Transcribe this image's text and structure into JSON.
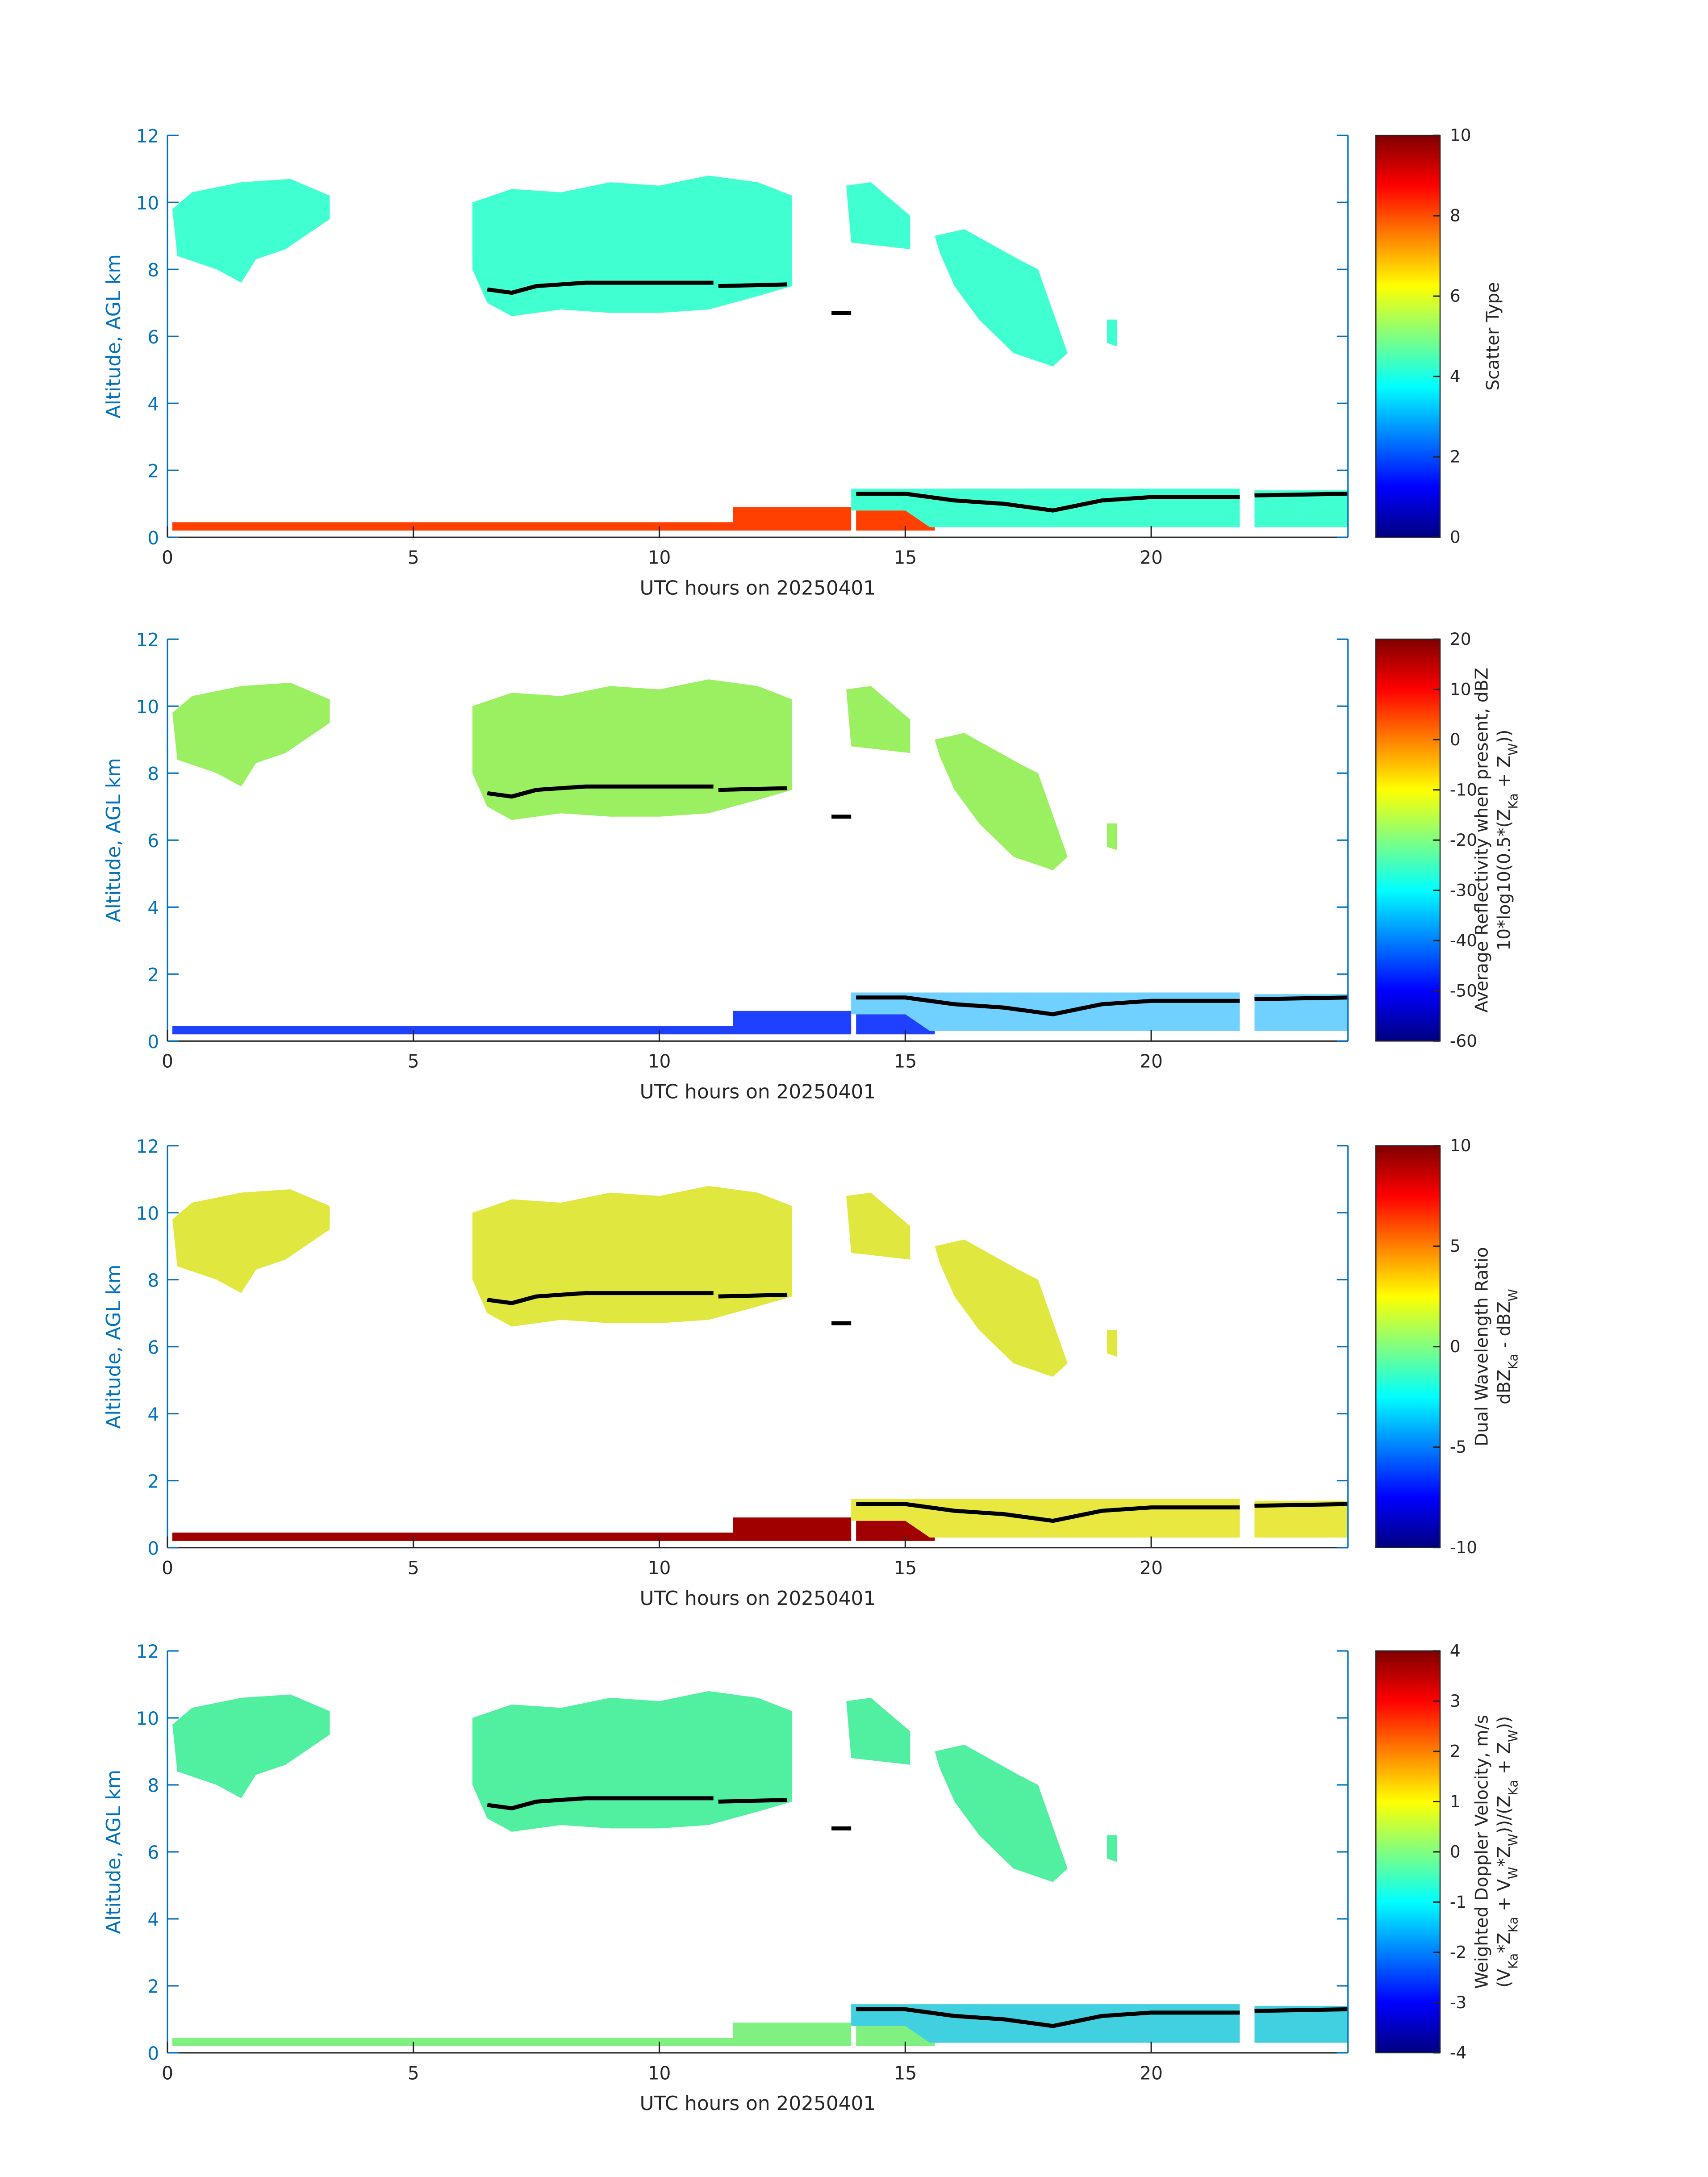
{
  "chart_data": [
    {
      "type": "heatmap",
      "xlabel": "UTC hours on 20250401",
      "ylabel": "Altitude, AGL km",
      "xlim": [
        0,
        24
      ],
      "xticks": [
        0,
        5,
        10,
        15,
        20
      ],
      "ylim": [
        0,
        12
      ],
      "yticks": [
        0,
        2,
        4,
        6,
        8,
        10,
        12
      ],
      "colormap": "jet",
      "clim": [
        0,
        10
      ],
      "cticks": [
        0,
        2,
        4,
        6,
        8,
        10
      ],
      "colorbar_label": [
        [
          "Scatter Type"
        ]
      ]
    },
    {
      "type": "heatmap",
      "xlabel": "UTC hours on 20250401",
      "ylabel": "Altitude, AGL km",
      "xlim": [
        0,
        24
      ],
      "xticks": [
        0,
        5,
        10,
        15,
        20
      ],
      "ylim": [
        0,
        12
      ],
      "yticks": [
        0,
        2,
        4,
        6,
        8,
        10,
        12
      ],
      "colormap": "jet",
      "clim": [
        -60,
        20
      ],
      "cticks": [
        -60,
        -50,
        -40,
        -30,
        -20,
        -10,
        0,
        10,
        20
      ],
      "colorbar_label": [
        [
          "Average Reflectivity when present, dBZ"
        ],
        [
          "10*log10(0.5*(Z",
          "Ka",
          " + Z",
          "W",
          "))"
        ]
      ]
    },
    {
      "type": "heatmap",
      "xlabel": "UTC hours on 20250401",
      "ylabel": "Altitude, AGL km",
      "xlim": [
        0,
        24
      ],
      "xticks": [
        0,
        5,
        10,
        15,
        20
      ],
      "ylim": [
        0,
        12
      ],
      "yticks": [
        0,
        2,
        4,
        6,
        8,
        10,
        12
      ],
      "colormap": "jet",
      "clim": [
        -10,
        10
      ],
      "cticks": [
        -10,
        -5,
        0,
        5,
        10
      ],
      "colorbar_label": [
        [
          "Dual Wavelength Ratio"
        ],
        [
          "dBZ",
          "Ka",
          " - dBZ",
          "W"
        ]
      ]
    },
    {
      "type": "heatmap",
      "xlabel": "UTC hours on 20250401",
      "ylabel": "Altitude, AGL km",
      "xlim": [
        0,
        24
      ],
      "xticks": [
        0,
        5,
        10,
        15,
        20
      ],
      "ylim": [
        0,
        12
      ],
      "yticks": [
        0,
        2,
        4,
        6,
        8,
        10,
        12
      ],
      "colormap": "jet",
      "clim": [
        -4,
        4
      ],
      "cticks": [
        -4,
        -3,
        -2,
        -1,
        0,
        1,
        2,
        3,
        4
      ],
      "colorbar_label": [
        [
          "Weighted Doppler Velocity, m/s"
        ],
        [
          "(V",
          "Ka",
          "*Z",
          "Ka",
          " + V",
          "W",
          "*Z",
          "W",
          "))/(Z",
          "Ka",
          " + Z",
          "W",
          "))"
        ]
      ]
    }
  ]
}
